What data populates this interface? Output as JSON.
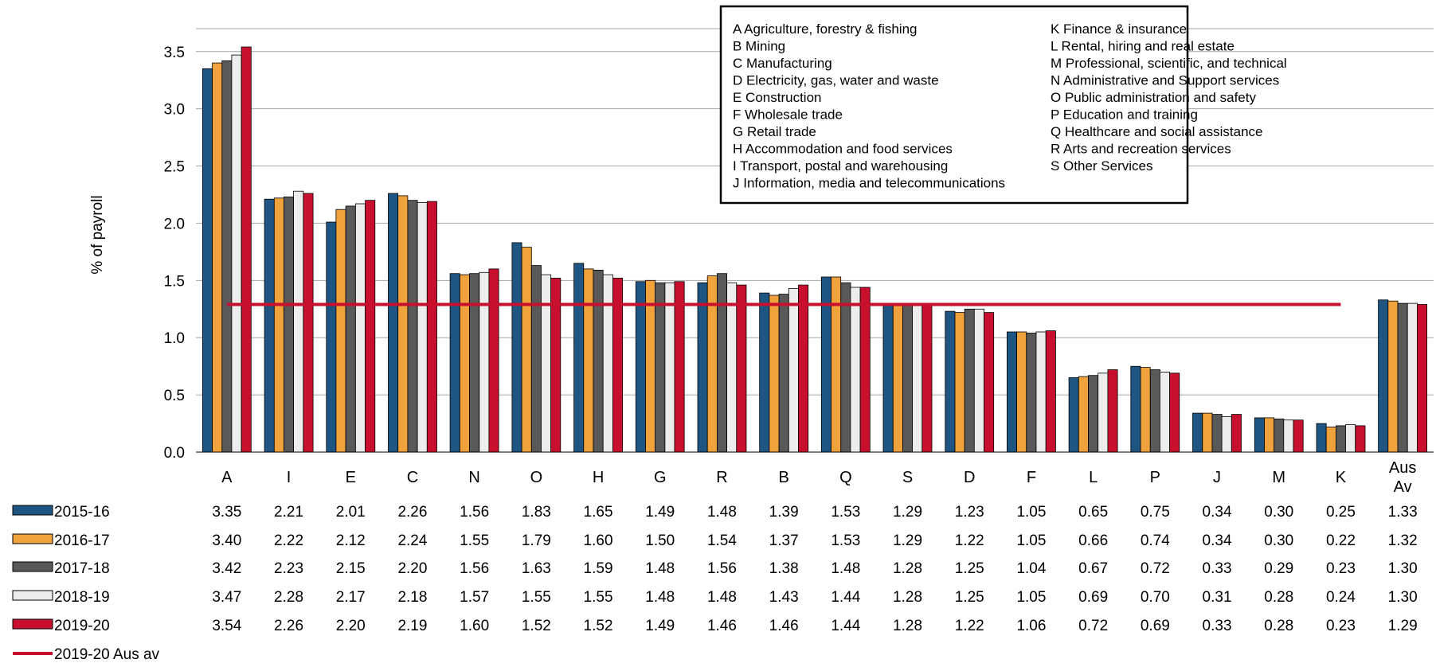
{
  "chart_data": {
    "type": "bar",
    "ylabel": "% of payroll",
    "ylim": [
      0,
      3.7
    ],
    "y_ticks": [
      "0.0",
      "0.5",
      "1.0",
      "1.5",
      "2.0",
      "2.5",
      "3.0",
      "3.5"
    ],
    "grid": true,
    "categories": [
      "A",
      "I",
      "E",
      "C",
      "N",
      "O",
      "H",
      "G",
      "R",
      "B",
      "Q",
      "S",
      "D",
      "F",
      "L",
      "P",
      "J",
      "M",
      "K",
      "Aus Av"
    ],
    "series": [
      {
        "name": "2015-16",
        "color": "#1F5582",
        "values": [
          3.35,
          2.21,
          2.01,
          2.26,
          1.56,
          1.83,
          1.65,
          1.49,
          1.48,
          1.39,
          1.53,
          1.29,
          1.23,
          1.05,
          0.65,
          0.75,
          0.34,
          0.3,
          0.25,
          1.33
        ],
        "labels": [
          "3.35",
          "2.21",
          "2.01",
          "2.26",
          "1.56",
          "1.83",
          "1.65",
          "1.49",
          "1.48",
          "1.39",
          "1.53",
          "1.29",
          "1.23",
          "1.05",
          "0.65",
          "0.75",
          "0.34",
          "0.30",
          "0.25",
          "1.33"
        ]
      },
      {
        "name": "2016-17",
        "color": "#F0A23C",
        "values": [
          3.4,
          2.22,
          2.12,
          2.24,
          1.55,
          1.79,
          1.6,
          1.5,
          1.54,
          1.37,
          1.53,
          1.29,
          1.22,
          1.05,
          0.66,
          0.74,
          0.34,
          0.3,
          0.22,
          1.32
        ],
        "labels": [
          "3.40",
          "2.22",
          "2.12",
          "2.24",
          "1.55",
          "1.79",
          "1.60",
          "1.50",
          "1.54",
          "1.37",
          "1.53",
          "1.29",
          "1.22",
          "1.05",
          "0.66",
          "0.74",
          "0.34",
          "0.30",
          "0.22",
          "1.32"
        ]
      },
      {
        "name": "2017-18",
        "color": "#595959",
        "values": [
          3.42,
          2.23,
          2.15,
          2.2,
          1.56,
          1.63,
          1.59,
          1.48,
          1.56,
          1.38,
          1.48,
          1.28,
          1.25,
          1.04,
          0.67,
          0.72,
          0.33,
          0.29,
          0.23,
          1.3
        ],
        "labels": [
          "3.42",
          "2.23",
          "2.15",
          "2.20",
          "1.56",
          "1.63",
          "1.59",
          "1.48",
          "1.56",
          "1.38",
          "1.48",
          "1.28",
          "1.25",
          "1.04",
          "0.67",
          "0.72",
          "0.33",
          "0.29",
          "0.23",
          "1.30"
        ]
      },
      {
        "name": "2018-19",
        "color": "#EDEDED",
        "values": [
          3.47,
          2.28,
          2.17,
          2.18,
          1.57,
          1.55,
          1.55,
          1.48,
          1.48,
          1.43,
          1.44,
          1.28,
          1.25,
          1.05,
          0.69,
          0.7,
          0.31,
          0.28,
          0.24,
          1.3
        ],
        "labels": [
          "3.47",
          "2.28",
          "2.17",
          "2.18",
          "1.57",
          "1.55",
          "1.55",
          "1.48",
          "1.48",
          "1.43",
          "1.44",
          "1.28",
          "1.25",
          "1.05",
          "0.69",
          "0.70",
          "0.31",
          "0.28",
          "0.24",
          "1.30"
        ]
      },
      {
        "name": "2019-20",
        "color": "#C8102E",
        "values": [
          3.54,
          2.26,
          2.2,
          2.19,
          1.6,
          1.52,
          1.52,
          1.49,
          1.46,
          1.46,
          1.44,
          1.28,
          1.22,
          1.06,
          0.72,
          0.69,
          0.33,
          0.28,
          0.23,
          1.29
        ],
        "labels": [
          "3.54",
          "2.26",
          "2.20",
          "2.19",
          "1.60",
          "1.52",
          "1.52",
          "1.49",
          "1.46",
          "1.46",
          "1.44",
          "1.28",
          "1.22",
          "1.06",
          "0.72",
          "0.69",
          "0.33",
          "0.28",
          "0.23",
          "1.29"
        ]
      }
    ],
    "reference_line": {
      "name": "2019-20 Aus av",
      "value": 1.29,
      "color": "#C8102E"
    },
    "legend_box": {
      "left_column": [
        "A  Agriculture, forestry & fishing",
        "B  Mining",
        "C  Manufacturing",
        "D  Electricity, gas, water and waste",
        "E  Construction",
        "F  Wholesale trade",
        "G  Retail trade",
        "H  Accommodation and food services",
        "I   Transport, postal and warehousing",
        "J  Information, media and telecommunications"
      ],
      "right_column": [
        "K  Finance & insurance",
        "L  Rental, hiring and real estate",
        "M  Professional, scientific, and technical",
        "N  Administrative and Support services",
        "O  Public administration and safety",
        "P  Education and training",
        "Q  Healthcare and social assistance",
        "R  Arts and recreation services",
        "S  Other Services"
      ]
    }
  }
}
